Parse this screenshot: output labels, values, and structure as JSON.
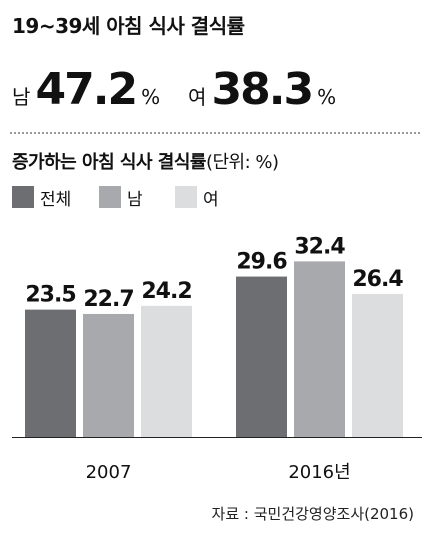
{
  "title": "19~39세 아침 식사 결식률",
  "headline": {
    "male": {
      "label": "남",
      "value": "47.2",
      "unit": "%"
    },
    "female": {
      "label": "여",
      "value": "38.3",
      "unit": "%"
    }
  },
  "subtitle": "증가하는 아침 식사 결식률",
  "subtitle_unit": "(단위: %)",
  "source": "자료 : 국민건강영양조사(2016)",
  "chart_data": {
    "type": "bar",
    "title": "증가하는 아침 식사 결식률",
    "unit": "%",
    "categories": [
      "2007",
      "2016년"
    ],
    "series": [
      {
        "name": "전체",
        "values": [
          23.5,
          29.6
        ],
        "color": "#6d6e71"
      },
      {
        "name": "남",
        "values": [
          22.7,
          32.4
        ],
        "color": "#a7a9ac"
      },
      {
        "name": "여",
        "values": [
          24.2,
          26.4
        ],
        "color": "#dcdddf"
      }
    ],
    "ylim": [
      0,
      36
    ],
    "grid": false,
    "legend": "top-left"
  }
}
